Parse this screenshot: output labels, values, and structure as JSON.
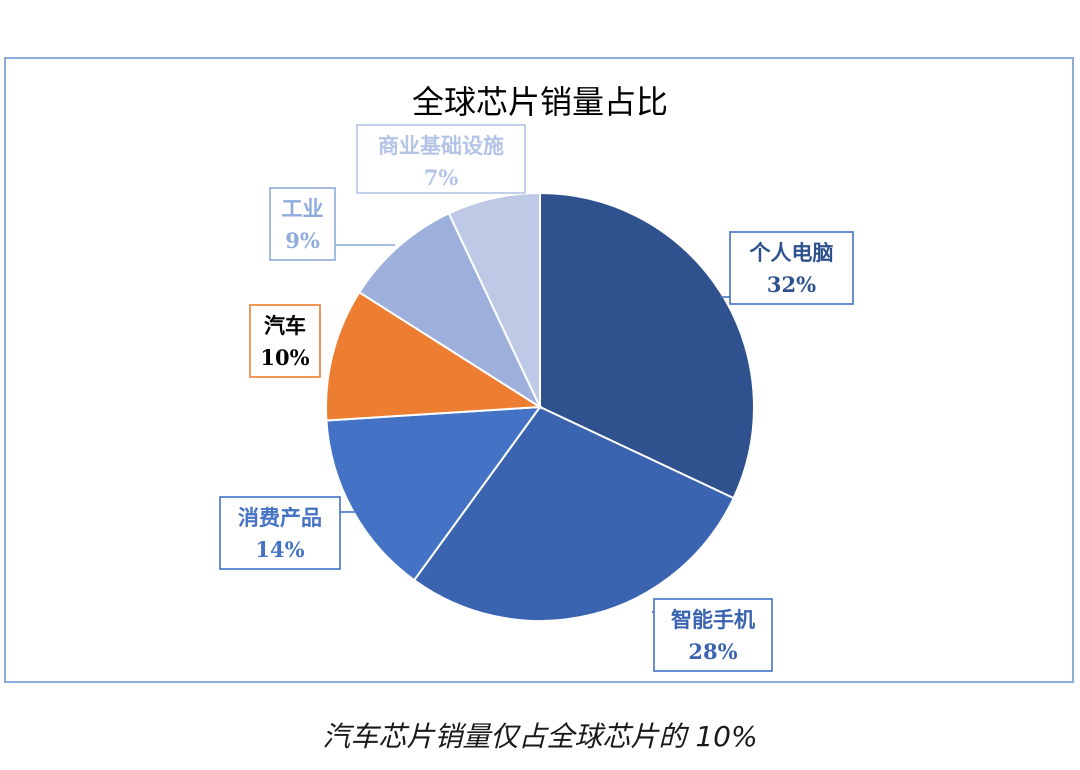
{
  "chart_data": {
    "type": "pie",
    "title": "全球芯片销量占比",
    "slices": [
      {
        "label": "个人电脑",
        "value": 32,
        "value_label": "32%",
        "color": "#2f528f"
      },
      {
        "label": "智能手机",
        "value": 28,
        "value_label": "28%",
        "color": "#3a63b0"
      },
      {
        "label": "消费产品",
        "value": 14,
        "value_label": "14%",
        "color": "#4472c4"
      },
      {
        "label": "汽车",
        "value": 10,
        "value_label": "10%",
        "color": "#ed7d31"
      },
      {
        "label": "工业",
        "value": 9,
        "value_label": "9%",
        "color": "#9dafdb"
      },
      {
        "label": "商业基础设施",
        "value": 7,
        "value_label": "7%",
        "color": "#bec9e6"
      }
    ],
    "callout_colors": [
      "#2f528f",
      "#3a63b0",
      "#4472c4",
      "#000000",
      "#8faadc",
      "#b4c4e6"
    ],
    "callout_borders": [
      "#4472c4",
      "#4472c4",
      "#4472c4",
      "#ed7d31",
      "#8faadc",
      "#b4c4e6"
    ]
  },
  "caption": "汽车芯片销量仅占全球芯片的 10%"
}
